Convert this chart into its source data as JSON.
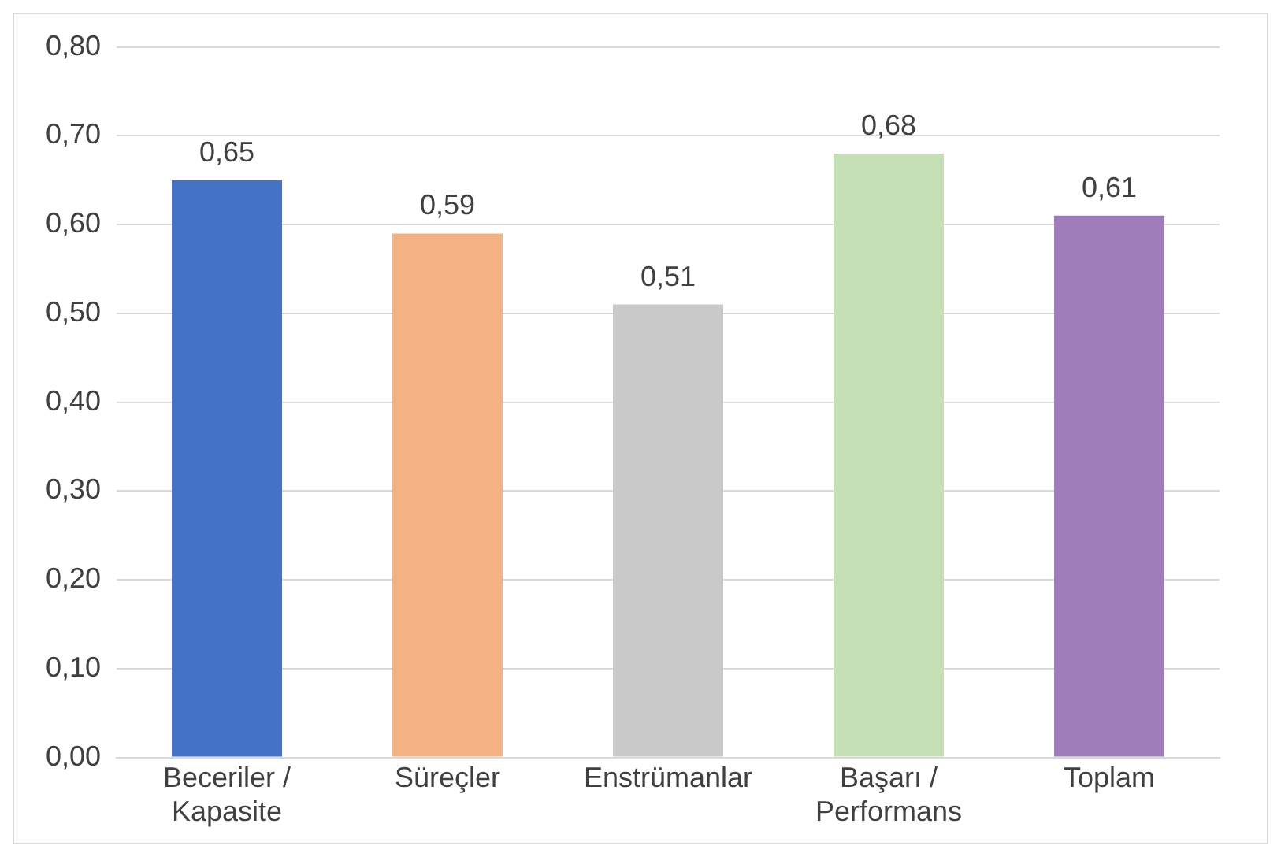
{
  "chart_data": {
    "type": "bar",
    "categories": [
      "Beceriler / Kapasite",
      "Süreçler",
      "Enstrümanlar",
      "Başarı / Performans",
      "Toplam"
    ],
    "values": [
      0.65,
      0.59,
      0.51,
      0.68,
      0.61
    ],
    "colors": [
      "#4472c4",
      "#f4b183",
      "#c9c9c9",
      "#c5e0b4",
      "#a07dba"
    ],
    "value_labels": [
      "0,65",
      "0,59",
      "0,51",
      "0,68",
      "0,61"
    ],
    "ylim": [
      0,
      0.8
    ],
    "yticks": [
      {
        "value": 0,
        "label": "0,00"
      },
      {
        "value": 0.1,
        "label": "0,10"
      },
      {
        "value": 0.2,
        "label": "0,20"
      },
      {
        "value": 0.3,
        "label": "0,30"
      },
      {
        "value": 0.4,
        "label": "0,40"
      },
      {
        "value": 0.5,
        "label": "0,50"
      },
      {
        "value": 0.6,
        "label": "0,60"
      },
      {
        "value": 0.7,
        "label": "0,70"
      },
      {
        "value": 0.8,
        "label": "0,80"
      }
    ],
    "grid": "y",
    "legend": false
  }
}
